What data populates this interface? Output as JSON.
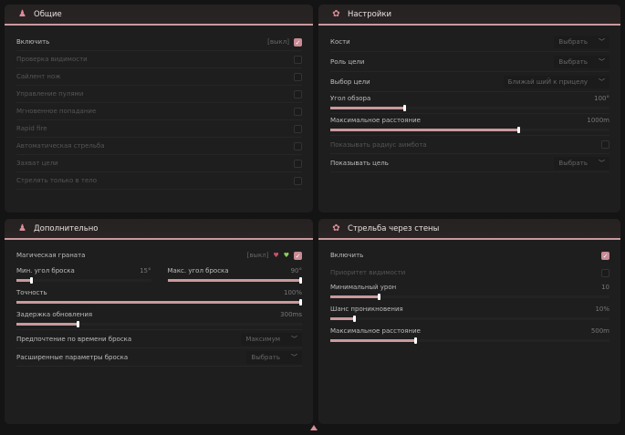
{
  "accent": "#c99a9d",
  "general": {
    "title": "Общие",
    "icon": "character-icon",
    "rows": [
      {
        "label": "Включить",
        "extra": "[выкл]",
        "checked": true
      },
      {
        "label": "Проверка видимости",
        "checked": false
      },
      {
        "label": "Сайлент нож",
        "checked": false
      },
      {
        "label": "Управление пулями",
        "checked": false
      },
      {
        "label": "Мгновенное попадание",
        "checked": false
      },
      {
        "label": "Rapid fire",
        "checked": false
      },
      {
        "label": "Автоматическая стрельба",
        "checked": false
      },
      {
        "label": "Захват цели",
        "checked": false
      },
      {
        "label": "Стрелять только в тело",
        "checked": false
      }
    ]
  },
  "settings": {
    "title": "Настройки",
    "icon": "gear-icon",
    "bones": {
      "label": "Кости",
      "value": "Выбрать"
    },
    "target_role": {
      "label": "Роль цели",
      "value": "Выбрать"
    },
    "target_select": {
      "label": "Выбор цели",
      "value": "Ближай шиЙ к прицелу"
    },
    "fov": {
      "label": "Угол обзора",
      "value": "100°",
      "fraction": 0.27
    },
    "max_dist": {
      "label": "Максимальное расстояние",
      "value": "1000m",
      "fraction": 0.68
    },
    "show_radius": {
      "label": "Показывать радиус аимбота",
      "checked": false
    },
    "show_target": {
      "label": "Показывать цель",
      "value": "Выбрать"
    }
  },
  "extra": {
    "title": "Дополнительно",
    "icon": "character-icon",
    "grenade": {
      "label": "Магическая граната",
      "extra": "[выкл]",
      "checked": true
    },
    "min_angle": {
      "label": "Мин. угол броска",
      "value": "15°",
      "fraction": 0.12
    },
    "max_angle": {
      "label": "Макс. угол броска",
      "value": "90°",
      "fraction": 1.0
    },
    "accuracy": {
      "label": "Точность",
      "value": "100%",
      "fraction": 1.0
    },
    "delay": {
      "label": "Задержка обновления",
      "value": "300ms",
      "fraction": 0.22
    },
    "throw_pref": {
      "label": "Предпочтение по времени броска",
      "value": "Максимум"
    },
    "throw_adv": {
      "label": "Расширенные параметры броска",
      "value": "Выбрать"
    }
  },
  "wallbang": {
    "title": "Стрельба через стены",
    "icon": "gear-icon",
    "enable": {
      "label": "Включить",
      "checked": true
    },
    "priority": {
      "label": "Приоритет видимости",
      "checked": false
    },
    "min_dmg": {
      "label": "Минимальный урон",
      "value": "10",
      "fraction": 0.18
    },
    "pen_chance": {
      "label": "Шанс проникновения",
      "value": "10%",
      "fraction": 0.09
    },
    "max_dist": {
      "label": "Максимальное расстояние",
      "value": "500m",
      "fraction": 0.31
    }
  }
}
